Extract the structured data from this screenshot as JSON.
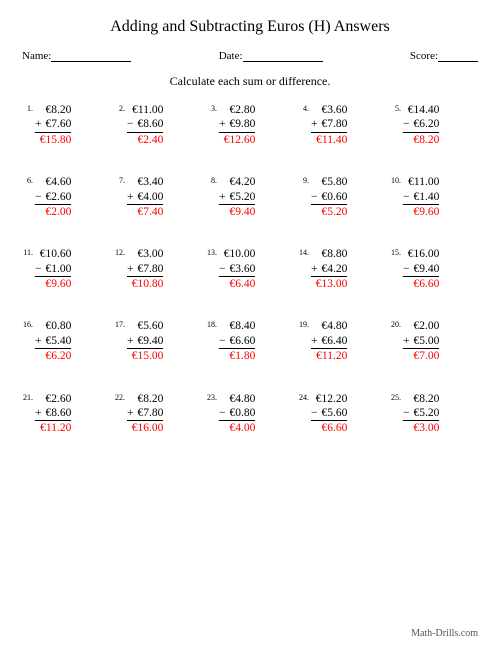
{
  "title": "Adding and Subtracting Euros (H) Answers",
  "labels": {
    "name": "Name:",
    "date": "Date:",
    "score": "Score:"
  },
  "instruction": "Calculate each sum or difference.",
  "footer": "Math-Drills.com",
  "style": {
    "answer_color": "#ff0000",
    "background_color": "#ffffff",
    "text_color": "#000000",
    "title_fontsize": 16,
    "body_fontsize": 11.5,
    "num_fontsize": 8,
    "columns": 5,
    "rows": 5
  },
  "problems": [
    {
      "n": "1.",
      "a": "€8.20",
      "op": "+",
      "b": "€7.60",
      "ans": "€15.80"
    },
    {
      "n": "2.",
      "a": "€11.00",
      "op": "−",
      "b": "€8.60",
      "ans": "€2.40"
    },
    {
      "n": "3.",
      "a": "€2.80",
      "op": "+",
      "b": "€9.80",
      "ans": "€12.60"
    },
    {
      "n": "4.",
      "a": "€3.60",
      "op": "+",
      "b": "€7.80",
      "ans": "€11.40"
    },
    {
      "n": "5.",
      "a": "€14.40",
      "op": "−",
      "b": "€6.20",
      "ans": "€8.20"
    },
    {
      "n": "6.",
      "a": "€4.60",
      "op": "−",
      "b": "€2.60",
      "ans": "€2.00"
    },
    {
      "n": "7.",
      "a": "€3.40",
      "op": "+",
      "b": "€4.00",
      "ans": "€7.40"
    },
    {
      "n": "8.",
      "a": "€4.20",
      "op": "+",
      "b": "€5.20",
      "ans": "€9.40"
    },
    {
      "n": "9.",
      "a": "€5.80",
      "op": "−",
      "b": "€0.60",
      "ans": "€5.20"
    },
    {
      "n": "10.",
      "a": "€11.00",
      "op": "−",
      "b": "€1.40",
      "ans": "€9.60"
    },
    {
      "n": "11.",
      "a": "€10.60",
      "op": "−",
      "b": "€1.00",
      "ans": "€9.60"
    },
    {
      "n": "12.",
      "a": "€3.00",
      "op": "+",
      "b": "€7.80",
      "ans": "€10.80"
    },
    {
      "n": "13.",
      "a": "€10.00",
      "op": "−",
      "b": "€3.60",
      "ans": "€6.40"
    },
    {
      "n": "14.",
      "a": "€8.80",
      "op": "+",
      "b": "€4.20",
      "ans": "€13.00"
    },
    {
      "n": "15.",
      "a": "€16.00",
      "op": "−",
      "b": "€9.40",
      "ans": "€6.60"
    },
    {
      "n": "16.",
      "a": "€0.80",
      "op": "+",
      "b": "€5.40",
      "ans": "€6.20"
    },
    {
      "n": "17.",
      "a": "€5.60",
      "op": "+",
      "b": "€9.40",
      "ans": "€15.00"
    },
    {
      "n": "18.",
      "a": "€8.40",
      "op": "−",
      "b": "€6.60",
      "ans": "€1.80"
    },
    {
      "n": "19.",
      "a": "€4.80",
      "op": "+",
      "b": "€6.40",
      "ans": "€11.20"
    },
    {
      "n": "20.",
      "a": "€2.00",
      "op": "+",
      "b": "€5.00",
      "ans": "€7.00"
    },
    {
      "n": "21.",
      "a": "€2.60",
      "op": "+",
      "b": "€8.60",
      "ans": "€11.20"
    },
    {
      "n": "22.",
      "a": "€8.20",
      "op": "+",
      "b": "€7.80",
      "ans": "€16.00"
    },
    {
      "n": "23.",
      "a": "€4.80",
      "op": "−",
      "b": "€0.80",
      "ans": "€4.00"
    },
    {
      "n": "24.",
      "a": "€12.20",
      "op": "−",
      "b": "€5.60",
      "ans": "€6.60"
    },
    {
      "n": "25.",
      "a": "€8.20",
      "op": "−",
      "b": "€5.20",
      "ans": "€3.00"
    }
  ]
}
